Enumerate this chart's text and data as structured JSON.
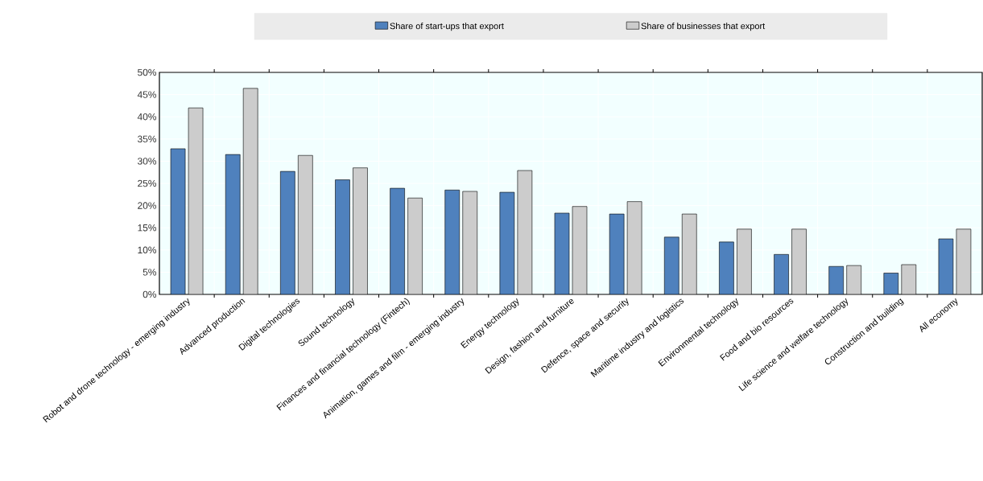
{
  "chart_data": {
    "type": "bar",
    "categories": [
      "Robot and drone technology - emerging industry",
      "Advanced production",
      "Digital technologies",
      "Sound technology",
      "Finances and financial technology (Fintech)",
      "Animation, games and film - emerging industry",
      "Energy technology",
      "Design, fashion and furniture",
      "Defence, space and security",
      "Maritime industry and logistics",
      "Environmental technology",
      "Food and bio resources",
      "Life science and welfare technology",
      "Construction and building",
      "All economy"
    ],
    "series": [
      {
        "name": "Share of start-ups that export",
        "color": "#4f81bd",
        "values": [
          32.8,
          31.5,
          27.7,
          25.8,
          23.9,
          23.5,
          23.0,
          18.3,
          18.1,
          12.9,
          11.8,
          9.0,
          6.3,
          4.8,
          12.5
        ]
      },
      {
        "name": "Share of businesses that export",
        "color": "#cccccc",
        "values": [
          42.0,
          46.4,
          31.3,
          28.5,
          21.7,
          23.2,
          27.9,
          19.8,
          20.9,
          18.1,
          14.7,
          14.7,
          6.5,
          6.7,
          14.7
        ]
      }
    ],
    "ylim": [
      0,
      50
    ],
    "yticks": [
      {
        "value": 0,
        "label": "0%"
      },
      {
        "value": 5,
        "label": "5%"
      },
      {
        "value": 10,
        "label": "10%"
      },
      {
        "value": 15,
        "label": "15%"
      },
      {
        "value": 20,
        "label": "20%"
      },
      {
        "value": 25,
        "label": "25%"
      },
      {
        "value": 30,
        "label": "30%"
      },
      {
        "value": 35,
        "label": "35%"
      },
      {
        "value": 40,
        "label": "40%"
      },
      {
        "value": 45,
        "label": "45%"
      },
      {
        "value": 50,
        "label": "50%"
      }
    ],
    "grid": true,
    "legend": "top"
  }
}
